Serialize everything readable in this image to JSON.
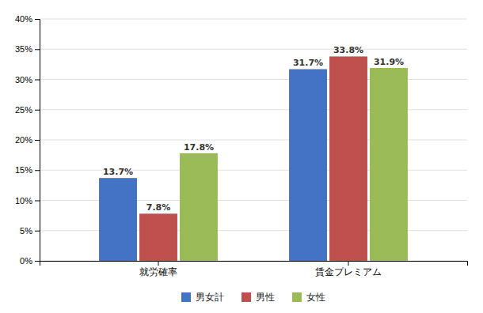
{
  "chart_data": {
    "type": "bar",
    "categories": [
      "就労確率",
      "賃金プレミアム"
    ],
    "series": [
      {
        "name": "男女計",
        "color": "#4472C4",
        "values": [
          13.7,
          31.7
        ],
        "value_labels": [
          "13.7%",
          "31.7%"
        ]
      },
      {
        "name": "男性",
        "color": "#C0504D",
        "values": [
          7.8,
          33.8
        ],
        "value_labels": [
          "7.8%",
          "33.8%"
        ]
      },
      {
        "name": "女性",
        "color": "#9BBB59",
        "values": [
          17.8,
          31.9
        ],
        "value_labels": [
          "17.8%",
          "31.9%"
        ]
      }
    ],
    "ylim": [
      0,
      40
    ],
    "yticks": [
      {
        "value": 0,
        "label": "0%"
      },
      {
        "value": 5,
        "label": "5%"
      },
      {
        "value": 10,
        "label": "10%"
      },
      {
        "value": 15,
        "label": "15%"
      },
      {
        "value": 20,
        "label": "20%"
      },
      {
        "value": 25,
        "label": "25%"
      },
      {
        "value": 30,
        "label": "30%"
      },
      {
        "value": 35,
        "label": "35%"
      },
      {
        "value": 40,
        "label": "40%"
      }
    ],
    "grid": true,
    "data_labels": true,
    "legend": "bottom"
  }
}
